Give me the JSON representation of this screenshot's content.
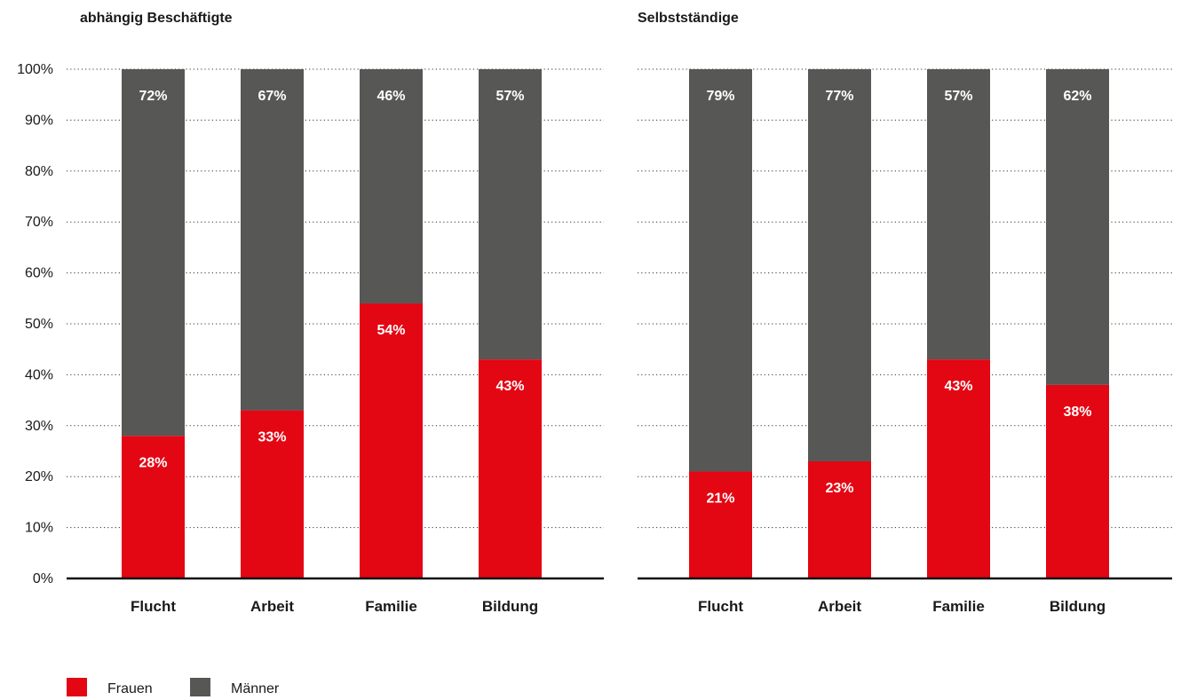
{
  "chart_data": [
    {
      "type": "bar",
      "stacked": true,
      "title": "abhängig Beschäftigte",
      "categories": [
        "Flucht",
        "Arbeit",
        "Familie",
        "Bildung"
      ],
      "series": [
        {
          "name": "Frauen",
          "values": [
            28,
            33,
            54,
            43
          ]
        },
        {
          "name": "Männer",
          "values": [
            72,
            67,
            46,
            57
          ]
        }
      ],
      "y_ticks": [
        "0%",
        "10%",
        "20%",
        "30%",
        "40%",
        "50%",
        "60%",
        "70%",
        "80%",
        "90%",
        "100%"
      ],
      "ylim": [
        0,
        100
      ],
      "grid": true
    },
    {
      "type": "bar",
      "stacked": true,
      "title": "Selbstständige",
      "categories": [
        "Flucht",
        "Arbeit",
        "Familie",
        "Bildung"
      ],
      "series": [
        {
          "name": "Frauen",
          "values": [
            21,
            23,
            43,
            38
          ]
        },
        {
          "name": "Männer",
          "values": [
            79,
            77,
            57,
            62
          ]
        }
      ],
      "ylim": [
        0,
        100
      ],
      "grid": true
    }
  ],
  "legend": {
    "placement": "bottom-left",
    "items": [
      {
        "label": "Frauen",
        "color": "#e30613"
      },
      {
        "label": "Männer",
        "color": "#575756"
      }
    ]
  },
  "colors": {
    "frauen": "#e30613",
    "maenner": "#575756",
    "grid": "#333333",
    "text": "#1a1a1a"
  }
}
